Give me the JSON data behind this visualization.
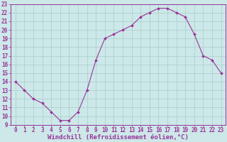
{
  "x": [
    0,
    1,
    2,
    3,
    4,
    5,
    6,
    7,
    8,
    9,
    10,
    11,
    12,
    13,
    14,
    15,
    16,
    17,
    18,
    19,
    20,
    21,
    22,
    23
  ],
  "y": [
    14,
    13,
    12,
    11.5,
    10.5,
    9.5,
    9.5,
    10.5,
    13,
    16.5,
    19,
    19.5,
    20,
    20.5,
    21.5,
    22,
    22.5,
    22.5,
    22,
    21.5,
    19.5,
    17,
    16.5,
    15
  ],
  "line_color": "#993399",
  "marker": "D",
  "marker_size": 2,
  "bg_color": "#cce8e8",
  "grid_color": "#aacccc",
  "xlabel": "Windchill (Refroidissement éolien,°C)",
  "ylabel": "",
  "xlim": [
    -0.5,
    23.5
  ],
  "ylim": [
    9,
    23
  ],
  "yticks": [
    9,
    10,
    11,
    12,
    13,
    14,
    15,
    16,
    17,
    18,
    19,
    20,
    21,
    22,
    23
  ],
  "xticks": [
    0,
    1,
    2,
    3,
    4,
    5,
    6,
    7,
    8,
    9,
    10,
    11,
    12,
    13,
    14,
    15,
    16,
    17,
    18,
    19,
    20,
    21,
    22,
    23
  ],
  "tick_label_color": "#993399",
  "axis_color": "#993399",
  "xlabel_color": "#993399",
  "xlabel_fontsize": 6.5,
  "tick_fontsize": 5.5
}
